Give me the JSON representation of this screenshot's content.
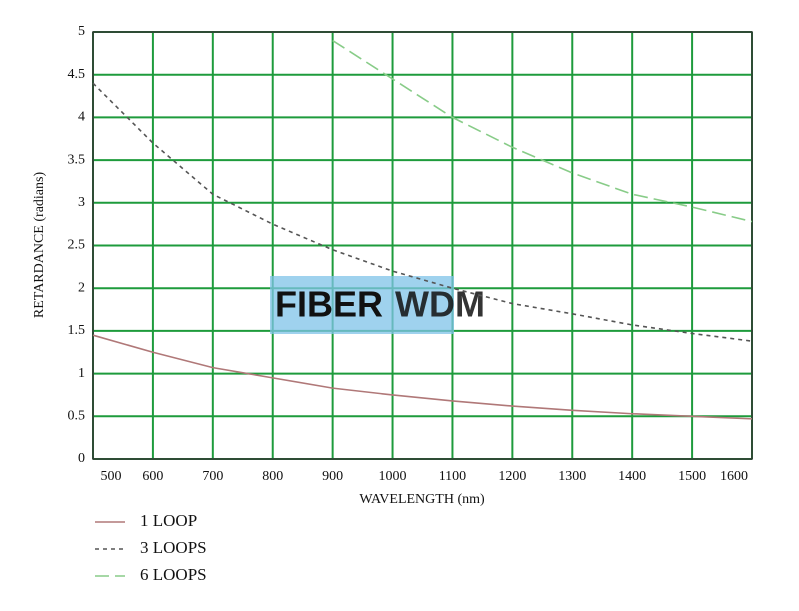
{
  "chart_data": {
    "type": "line",
    "xlabel": "WAVELENGTH (nm)",
    "ylabel": "RETARDANCE (radians)",
    "watermark": [
      "FIBER",
      "WDM"
    ],
    "x": [
      500,
      600,
      700,
      800,
      900,
      1000,
      1100,
      1200,
      1300,
      1400,
      1500,
      1600
    ],
    "series": [
      {
        "name": "1 LOOP",
        "color": "#b07878",
        "dash": "none",
        "values": [
          1.45,
          1.25,
          1.07,
          0.95,
          0.83,
          0.75,
          0.68,
          0.62,
          0.57,
          0.53,
          0.5,
          0.47
        ]
      },
      {
        "name": "3 LOOPS",
        "color": "#555555",
        "dash": "4 4",
        "values": [
          4.4,
          3.7,
          3.1,
          2.75,
          2.45,
          2.2,
          2.0,
          1.82,
          1.7,
          1.57,
          1.47,
          1.38
        ]
      },
      {
        "name": "6 LOOPS",
        "color": "#88cc88",
        "dash": "14 6",
        "values": [
          null,
          null,
          null,
          null,
          4.9,
          4.45,
          4.0,
          3.65,
          3.35,
          3.1,
          2.95,
          2.78
        ]
      }
    ],
    "xlim": [
      500,
      1600
    ],
    "ylim": [
      0,
      5
    ],
    "xticks": [
      500,
      600,
      700,
      800,
      900,
      1000,
      1100,
      1200,
      1300,
      1400,
      1500,
      1600
    ],
    "yticks": [
      0,
      0.5,
      1,
      1.5,
      2,
      2.5,
      3,
      3.5,
      4,
      4.5,
      5
    ],
    "grid": true,
    "grid_color": "#1e9b3c"
  }
}
